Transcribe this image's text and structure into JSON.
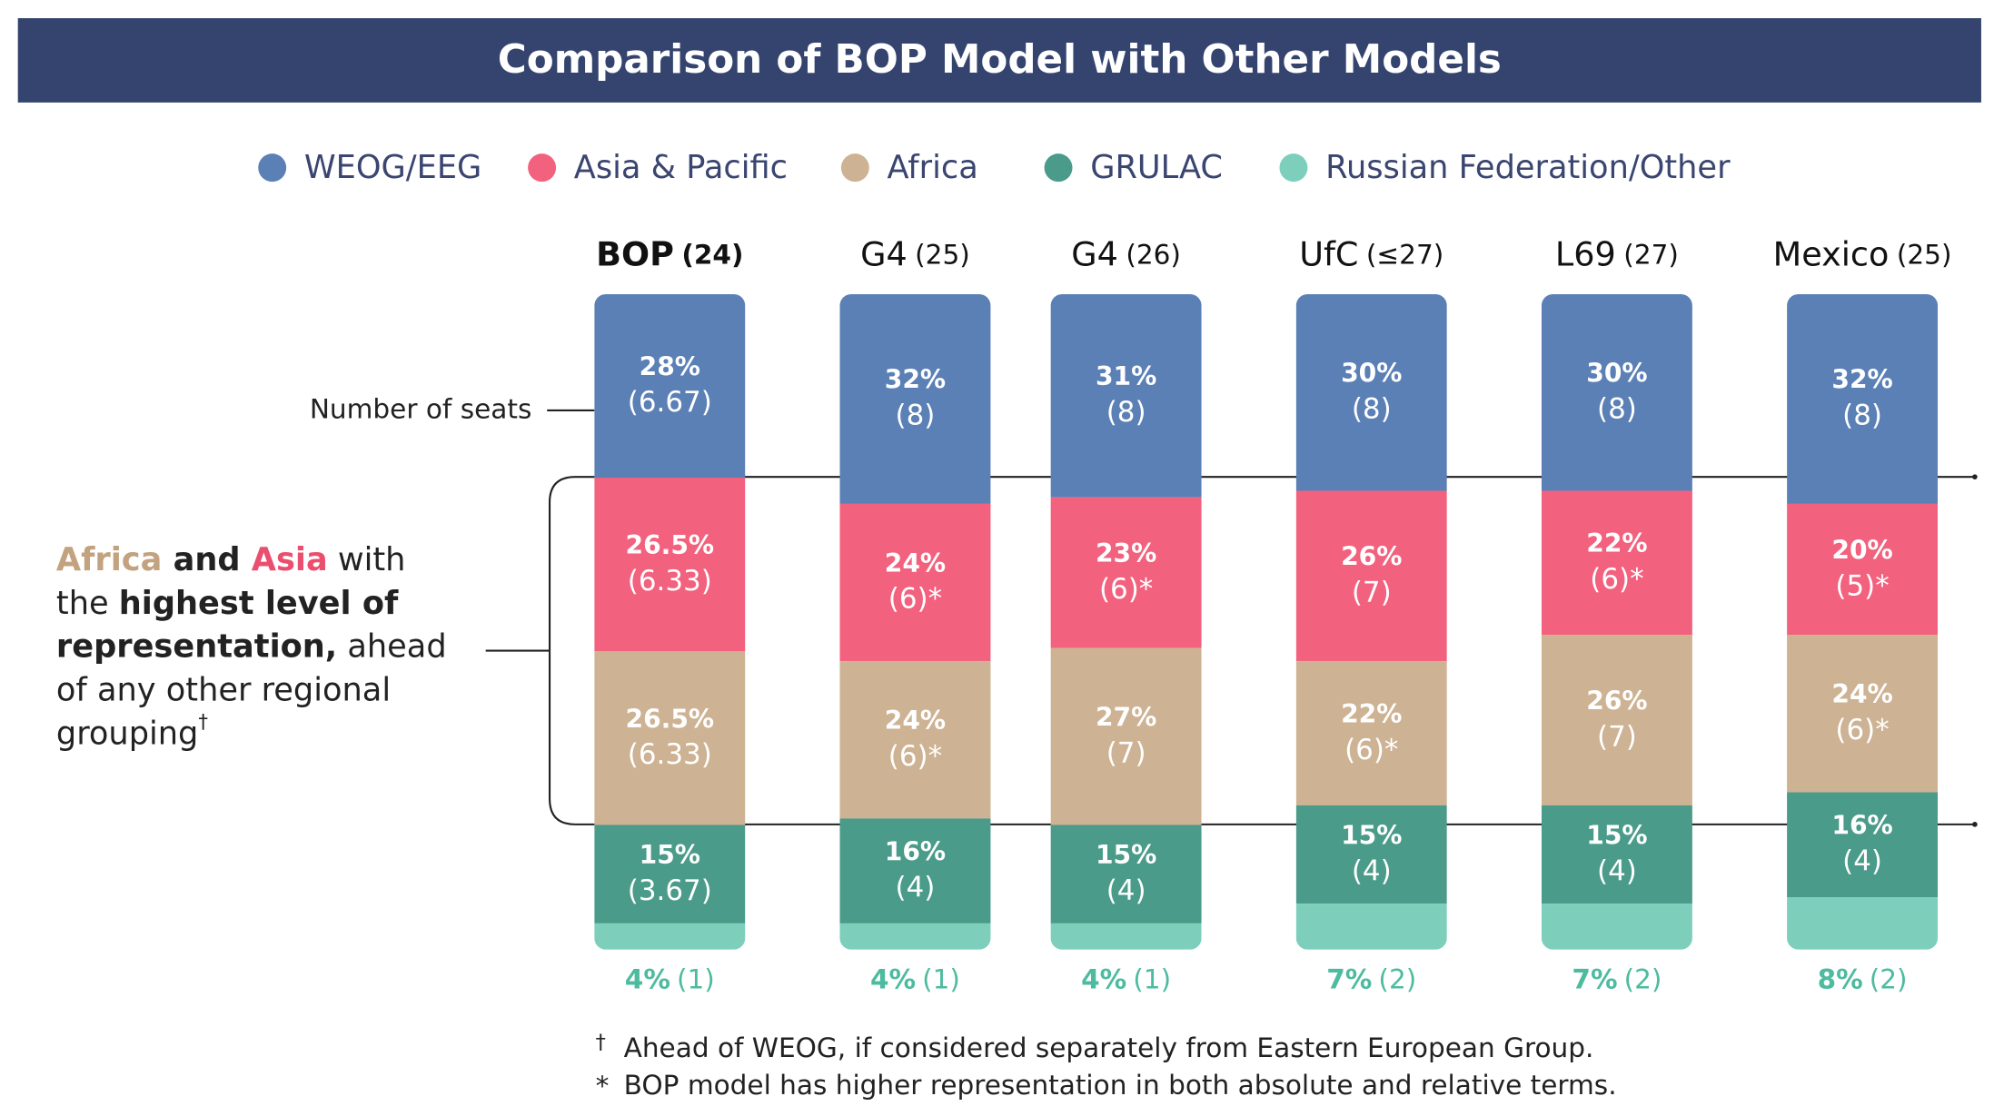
{
  "chart_data": {
    "type": "stacked_bar",
    "title": "Comparison of BOP Model with Other Models",
    "categories": [
      "BOP",
      "G4",
      "G4",
      "UfC",
      "L69",
      "Mexico"
    ],
    "category_counts": [
      "(24)",
      "(25)",
      "(26)",
      "(≤27)",
      "(27)",
      "(25)"
    ],
    "series": [
      {
        "name": "WEOG/EEG",
        "color": "#5b80b6",
        "values": [
          28,
          32,
          31,
          30,
          30,
          32
        ],
        "value_labels": [
          "28%",
          "32%",
          "31%",
          "30%",
          "30%",
          "32%"
        ],
        "seat_labels": [
          "(6.67)",
          "(8)",
          "(8)",
          "(8)",
          "(8)",
          "(8)"
        ]
      },
      {
        "name": "Asia & Pacific",
        "color": "#f2617e",
        "values": [
          26.5,
          24,
          23,
          26,
          22,
          20
        ],
        "value_labels": [
          "26.5%",
          "24%",
          "23%",
          "26%",
          "22%",
          "20%"
        ],
        "seat_labels": [
          "(6.33)",
          "(6)*",
          "(6)*",
          "(7)",
          "(6)*",
          "(5)*"
        ]
      },
      {
        "name": "Africa",
        "color": "#cdb293",
        "values": [
          26.5,
          24,
          27,
          22,
          26,
          24
        ],
        "value_labels": [
          "26.5%",
          "24%",
          "27%",
          "22%",
          "26%",
          "24%"
        ],
        "seat_labels": [
          "(6.33)",
          "(6)*",
          "(7)",
          "(6)*",
          "(7)",
          "(6)*"
        ]
      },
      {
        "name": "GRULAC",
        "color": "#4a9b89",
        "values": [
          15,
          16,
          15,
          15,
          15,
          16
        ],
        "value_labels": [
          "15%",
          "16%",
          "15%",
          "15%",
          "15%",
          "16%"
        ],
        "seat_labels": [
          "(3.67)",
          "(4)",
          "(4)",
          "(4)",
          "(4)",
          "(4)"
        ]
      },
      {
        "name": "Russian Federation/Other",
        "color": "#7dcfbc",
        "values": [
          4,
          4,
          4,
          7,
          7,
          8
        ],
        "value_labels": [
          "4%",
          "4%",
          "4%",
          "7%",
          "7%",
          "8%"
        ],
        "seat_labels": [
          "(1)",
          "(1)",
          "(1)",
          "(2)",
          "(2)",
          "(2)"
        ]
      }
    ],
    "seats_label": "Number of seats",
    "annotation": [
      [
        "Africa",
        " and ",
        "Asia",
        " with"
      ],
      [
        "the ",
        "highest level of"
      ],
      [
        "representation,",
        " ahead"
      ],
      [
        "of any other regional"
      ],
      [
        "grouping",
        "†"
      ]
    ],
    "footnotes": [
      {
        "marker": "†",
        "text": "Ahead of WEOG, if considered separately from Eastern European Group."
      },
      {
        "marker": "*",
        "text": "BOP model has higher representation in both absolute and relative terms."
      }
    ]
  }
}
